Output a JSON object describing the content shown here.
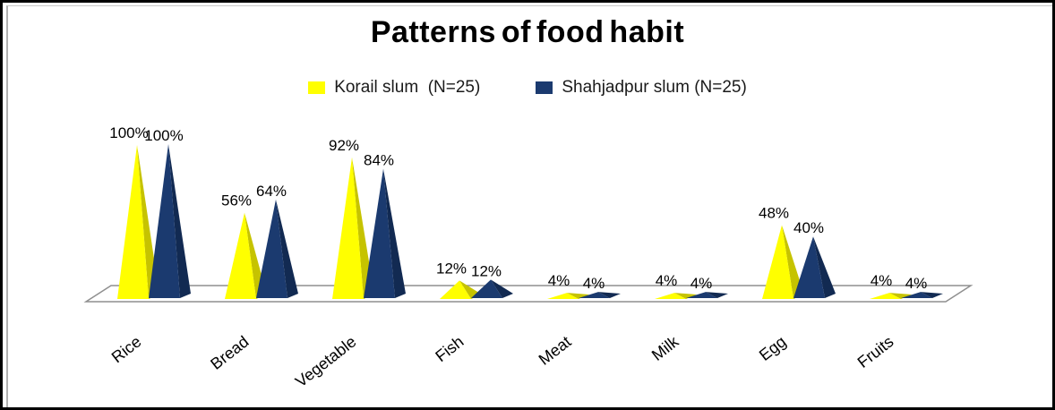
{
  "title": "Patterns of food habit",
  "legend": {
    "items": [
      {
        "label": "Korail slum  (N=25)",
        "color": "#FFFF00"
      },
      {
        "label": "Shahjadpur slum (N=25)",
        "color": "#1B3A6F"
      }
    ]
  },
  "colors": {
    "series1_front": "#FFFF00",
    "series1_side": "#C6C300",
    "series2_front": "#1B3A6F",
    "series2_side": "#122A52",
    "floor_stroke": "#8F8F8F",
    "label_text": "#000000",
    "border": "#000000"
  },
  "chart_data": {
    "type": "bar",
    "subtype": "3d-pyramid",
    "title": "Patterns of food habit",
    "unit": "%",
    "categories": [
      "Rice",
      "Bread",
      "Vegetable",
      "Fish",
      "Meat",
      "Milk",
      "Egg",
      "Fruits"
    ],
    "series": [
      {
        "name": "Korail slum  (N=25)",
        "color": "#FFFF00",
        "side_color": "#C6C300",
        "values": [
          100,
          56,
          92,
          12,
          4,
          4,
          48,
          4
        ],
        "labels": [
          "100%",
          "56%",
          "92%",
          "12%",
          "4%",
          "4%",
          "48%",
          "4%"
        ]
      },
      {
        "name": "Shahjadpur slum (N=25)",
        "color": "#1B3A6F",
        "side_color": "#122A52",
        "values": [
          100,
          64,
          84,
          12,
          4,
          4,
          40,
          4
        ],
        "labels": [
          "100%",
          "64%",
          "84%",
          "12%",
          "4%",
          "4%",
          "40%",
          "4%"
        ]
      }
    ],
    "ylim": [
      0,
      100
    ],
    "grid": false,
    "legend_position": "top",
    "data_labels": true,
    "category_label_rotation_deg": -38
  }
}
